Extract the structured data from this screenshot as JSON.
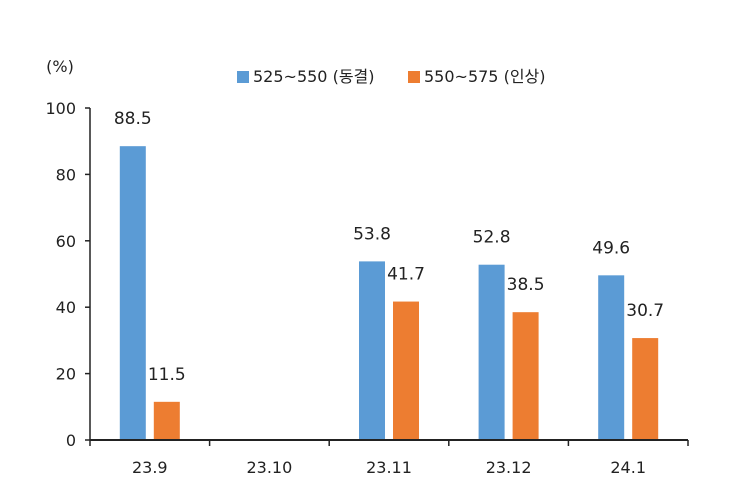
{
  "chart_data": {
    "type": "bar",
    "title": "",
    "unit_label": "(%)",
    "xlabel": "",
    "ylabel": "",
    "categories": [
      "23.9",
      "23.10",
      "23.11",
      "23.12",
      "24.1"
    ],
    "series": [
      {
        "name": "525~550 (동결)",
        "color": "#5b9bd5",
        "values": [
          88.5,
          null,
          53.8,
          52.8,
          49.6
        ]
      },
      {
        "name": "550~575 (인상)",
        "color": "#ed7d31",
        "values": [
          11.5,
          null,
          41.7,
          38.5,
          30.7
        ]
      }
    ],
    "data_labels": [
      [
        "88.5",
        "",
        "53.8",
        "52.8",
        "49.6"
      ],
      [
        "11.5",
        "",
        "41.7",
        "38.5",
        "30.7"
      ]
    ],
    "ylim": [
      0,
      100
    ],
    "yticks": [
      "0",
      "20",
      "40",
      "60",
      "80",
      "100"
    ],
    "grid": false,
    "legend_position": "top-center"
  }
}
